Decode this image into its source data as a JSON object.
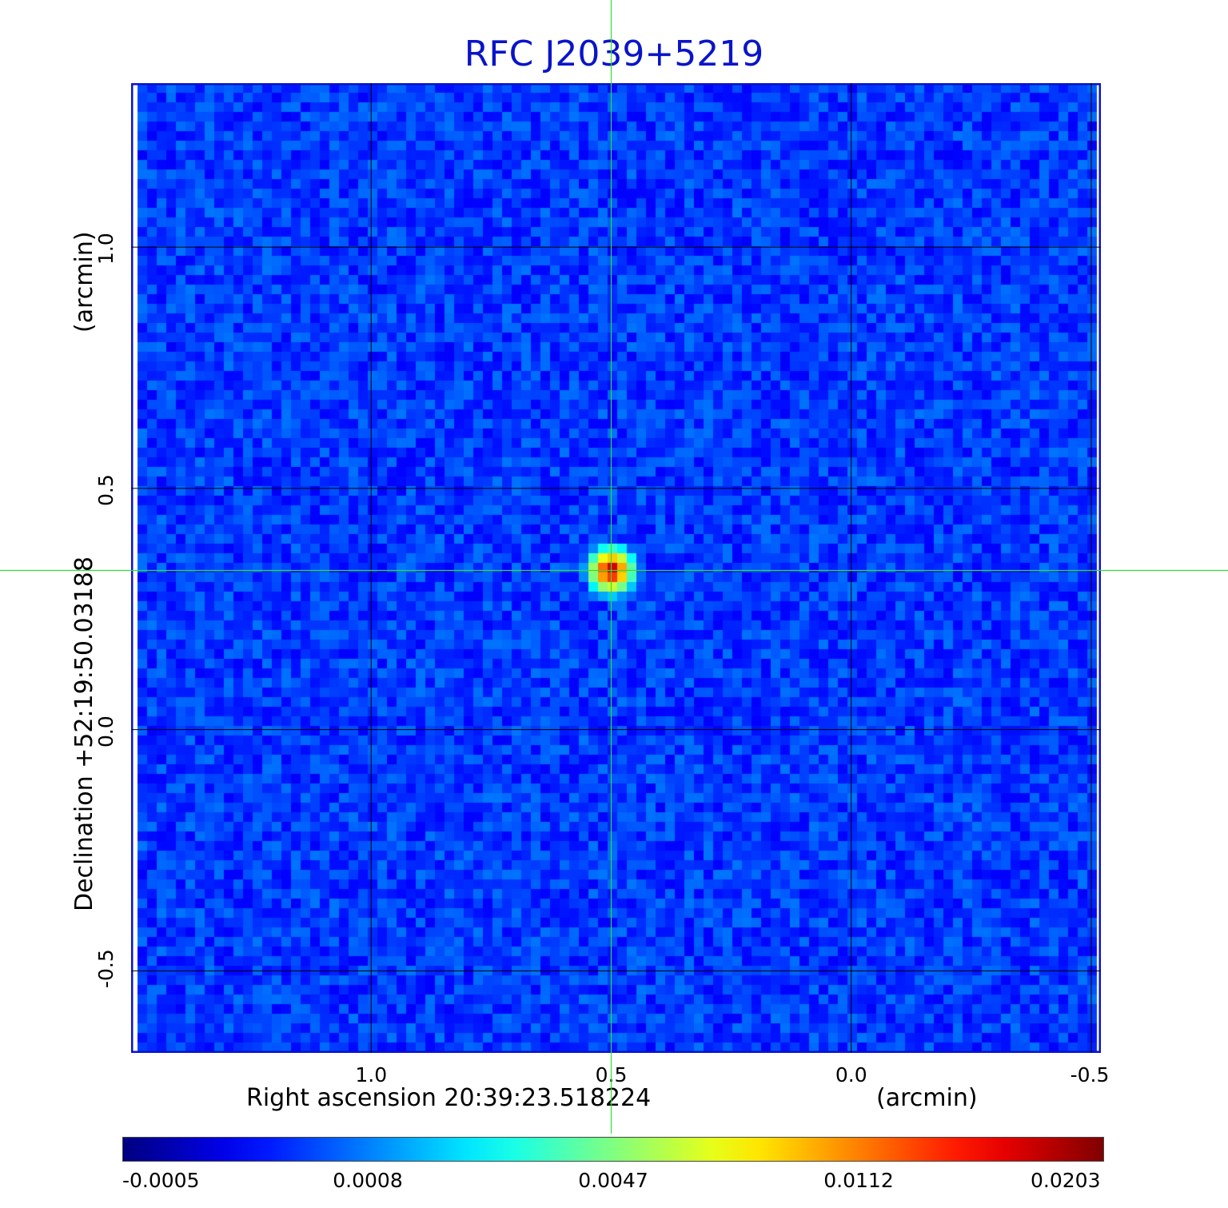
{
  "chart_data": {
    "type": "heatmap",
    "title": "RFC J2039+5219",
    "xlabel": "Right ascension  20:39:23.518224",
    "x_unit": "(arcmin)",
    "ylabel": "Declination  +52:19:50.03188",
    "y_unit": "(arcmin)",
    "x_ticks": [
      "1.0",
      "0.5",
      "0.0",
      "-0.5"
    ],
    "x_tick_values": [
      1.0,
      0.5,
      0.0,
      -0.5
    ],
    "y_ticks": [
      "1.0",
      "0.5",
      "0.0",
      "-0.5"
    ],
    "y_tick_values": [
      1.0,
      0.5,
      0.0,
      -0.5
    ],
    "xlim": [
      1.5,
      -0.52
    ],
    "ylim": [
      -0.67,
      1.34
    ],
    "grid": true,
    "source_peak": {
      "x": 0.5,
      "y": 0.33,
      "value": 0.0203
    },
    "colorbar": {
      "labels": [
        "-0.0005",
        "0.0008",
        "0.0047",
        "0.0112",
        "0.0203"
      ],
      "colormap": "jet",
      "scale": "nonlinear"
    },
    "crosshair": {
      "x": 0.5,
      "y": 0.33,
      "color": "#33dd33"
    }
  },
  "colors": {
    "title": "#0a14c8",
    "frame": "#0a14c8",
    "background_field": "#1e5ee6"
  }
}
